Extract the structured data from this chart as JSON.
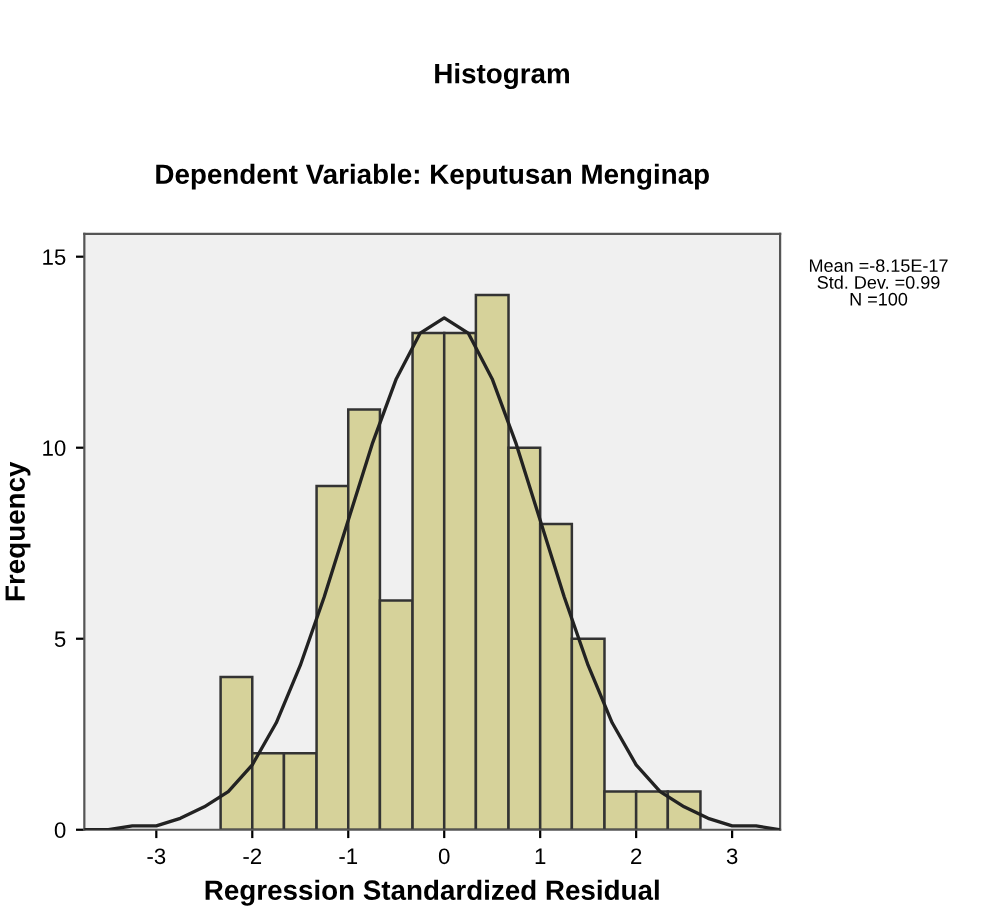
{
  "chart_data": {
    "type": "histogram",
    "title": "Histogram",
    "subtitle": "Dependent Variable: Keputusan Menginap",
    "xlabel": "Regression Standardized Residual",
    "ylabel": "Frequency",
    "series": [
      {
        "color": "#d6d29a",
        "bins": [
          -2.33,
          -2.0,
          -1.67,
          -1.33,
          -1.0,
          -0.67,
          -0.33,
          0.0,
          0.33,
          0.67,
          1.0,
          1.33,
          1.67,
          2.0,
          2.33,
          2.67
        ],
        "values": [
          4,
          2,
          2,
          9,
          11,
          6,
          13,
          13,
          14,
          10,
          8,
          5,
          1,
          1,
          1
        ]
      },
      {
        "type": "line",
        "color": "#222222",
        "x": [
          -3.75,
          -3.5,
          -3.25,
          -3.0,
          -2.75,
          -2.5,
          -2.25,
          -2.0,
          -1.75,
          -1.5,
          -1.25,
          -1.0,
          -0.75,
          -0.5,
          -0.25,
          0.0,
          0.25,
          0.5,
          0.75,
          1.0,
          1.25,
          1.5,
          1.75,
          2.0,
          2.25,
          2.5,
          2.75,
          3.0,
          3.25,
          3.5
        ],
        "values": [
          0.0,
          0.0,
          0.1,
          0.1,
          0.3,
          0.6,
          1.0,
          1.7,
          2.8,
          4.3,
          6.1,
          8.1,
          10.1,
          11.8,
          13.0,
          13.4,
          13.0,
          11.8,
          10.1,
          8.1,
          6.1,
          4.3,
          2.8,
          1.7,
          1.0,
          0.6,
          0.3,
          0.1,
          0.1,
          0.0
        ]
      }
    ],
    "annotations": [
      "Mean =-8.15E-17\nStd. Dev. =0.99\nN =100"
    ],
    "xlim": [
      -3.75,
      3.5
    ],
    "ylim": [
      0,
      15.6
    ],
    "xticks": [
      -3,
      -2,
      -1,
      0,
      1,
      2,
      3
    ],
    "yticks": [
      0,
      5,
      10,
      15
    ],
    "grid": false,
    "legend": false
  }
}
